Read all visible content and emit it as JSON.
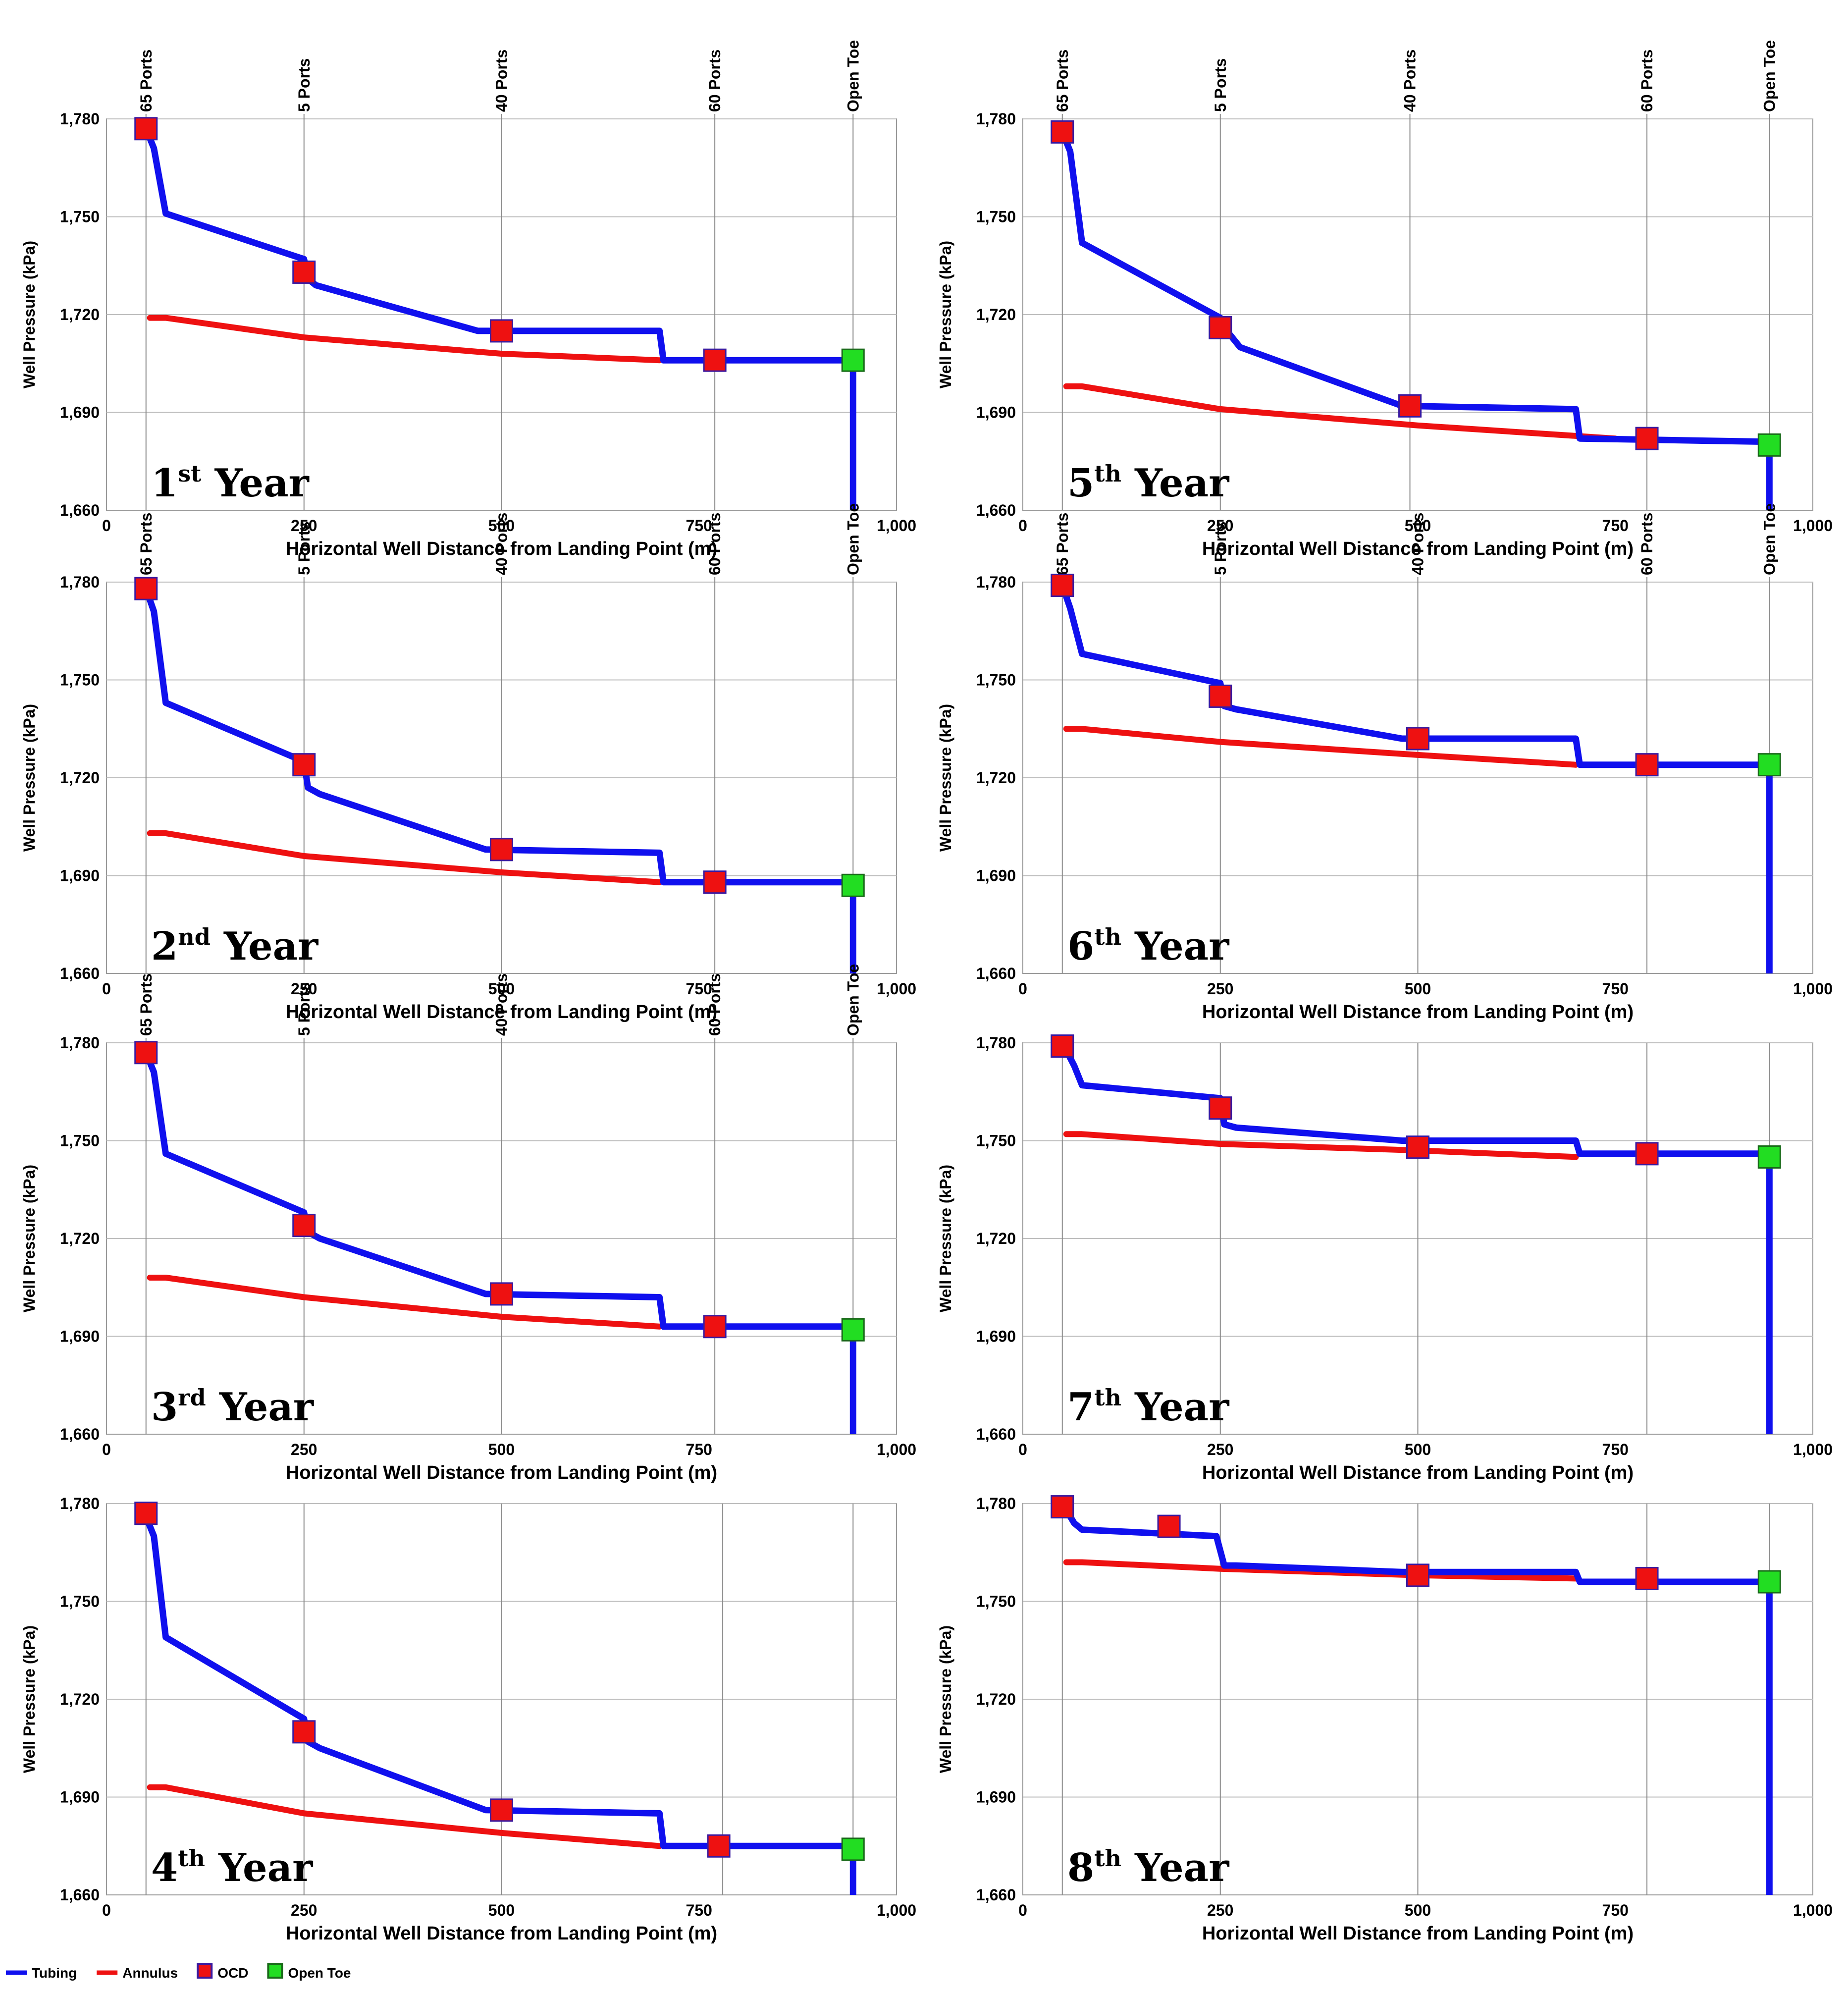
{
  "legend": {
    "items": [
      {
        "name": "Tubing",
        "kind": "line",
        "color": "#1010ee"
      },
      {
        "name": "Annulus",
        "kind": "line",
        "color": "#ee1111"
      },
      {
        "name": "OCD",
        "kind": "marker",
        "color": "#ee1111",
        "edge": "#3a1aa0"
      },
      {
        "name": "Open Toe",
        "kind": "marker",
        "color": "#22dd22",
        "edge": "#1a6a1a"
      }
    ]
  },
  "colors": {
    "tubing": "#1010ee",
    "annulus": "#ee1111",
    "ocd": "#ee1111",
    "open_toe": "#22dd22",
    "grid": "#bdbdbd",
    "marker_line": "#8a8a8a"
  },
  "chart_data": [
    {
      "type": "line",
      "ord": "1",
      "sup": "st",
      "suffix": " Year",
      "xlabel": "Horizontal Well Distance from Landing Point (m)",
      "ylabel": "Well Pressure (kPa)",
      "xlim": [
        0,
        1000
      ],
      "ylim": [
        1660,
        1780
      ],
      "xticks": [
        0,
        250,
        500,
        750,
        1000
      ],
      "xtick_labels": [
        "0",
        "250",
        "500",
        "750",
        "1,000"
      ],
      "yticks": [
        1660,
        1690,
        1720,
        1750,
        1780
      ],
      "ytick_labels": [
        "1,660",
        "1,690",
        "1,720",
        "1,750",
        "1,780"
      ],
      "markers": [
        {
          "label": "65 Ports",
          "x": 50
        },
        {
          "label": "5 Ports",
          "x": 250
        },
        {
          "label": "40 Ports",
          "x": 500
        },
        {
          "label": "60 Ports",
          "x": 770
        },
        {
          "label": "Open Toe",
          "x": 945
        }
      ],
      "tubing": [
        [
          50,
          1777
        ],
        [
          60,
          1771
        ],
        [
          75,
          1751
        ],
        [
          250,
          1737
        ],
        [
          255,
          1731
        ],
        [
          265,
          1729
        ],
        [
          470,
          1715
        ],
        [
          700,
          1715
        ],
        [
          705,
          1706
        ],
        [
          945,
          1706
        ],
        [
          945,
          1660
        ]
      ],
      "annulus": [
        [
          55,
          1719
        ],
        [
          75,
          1719
        ],
        [
          250,
          1713
        ],
        [
          500,
          1708
        ],
        [
          700,
          1706
        ]
      ],
      "ocd": [
        [
          50,
          1777
        ],
        [
          250,
          1733
        ],
        [
          500,
          1715
        ],
        [
          770,
          1706
        ]
      ],
      "open_toe": [
        [
          945,
          1706
        ]
      ]
    },
    {
      "type": "line",
      "ord": "5",
      "sup": "th",
      "suffix": " Year",
      "xlabel": "Horizontal Well Distance from Landing Point (m)",
      "ylabel": "Well Pressure (kPa)",
      "xlim": [
        0,
        1000
      ],
      "ylim": [
        1660,
        1780
      ],
      "xticks": [
        0,
        250,
        500,
        750,
        1000
      ],
      "xtick_labels": [
        "0",
        "250",
        "500",
        "750",
        "1,000"
      ],
      "yticks": [
        1660,
        1690,
        1720,
        1750,
        1780
      ],
      "ytick_labels": [
        "1,660",
        "1,690",
        "1,720",
        "1,750",
        "1,780"
      ],
      "markers": [
        {
          "label": "65 Ports",
          "x": 50
        },
        {
          "label": "5 Ports",
          "x": 250
        },
        {
          "label": "40 Ports",
          "x": 490
        },
        {
          "label": "60 Ports",
          "x": 790
        },
        {
          "label": "Open Toe",
          "x": 945
        }
      ],
      "tubing": [
        [
          50,
          1776
        ],
        [
          60,
          1770
        ],
        [
          75,
          1742
        ],
        [
          250,
          1719
        ],
        [
          255,
          1716
        ],
        [
          275,
          1710
        ],
        [
          480,
          1692
        ],
        [
          700,
          1691
        ],
        [
          705,
          1682
        ],
        [
          945,
          1681
        ],
        [
          945,
          1660
        ]
      ],
      "annulus": [
        [
          55,
          1698
        ],
        [
          75,
          1698
        ],
        [
          250,
          1691
        ],
        [
          500,
          1686
        ],
        [
          750,
          1682
        ]
      ],
      "ocd": [
        [
          50,
          1776
        ],
        [
          250,
          1716
        ],
        [
          490,
          1692
        ],
        [
          790,
          1682
        ]
      ],
      "open_toe": [
        [
          945,
          1680
        ]
      ]
    },
    {
      "type": "line",
      "ord": "2",
      "sup": "nd",
      "suffix": " Year",
      "xlabel": "Horizontal Well Distance from Landing Point (m)",
      "ylabel": "Well Pressure (kPa)",
      "xlim": [
        0,
        1000
      ],
      "ylim": [
        1660,
        1780
      ],
      "xticks": [
        0,
        250,
        500,
        750,
        1000
      ],
      "xtick_labels": [
        "0",
        "250",
        "500",
        "750",
        "1,000"
      ],
      "yticks": [
        1660,
        1690,
        1720,
        1750,
        1780
      ],
      "ytick_labels": [
        "1,660",
        "1,690",
        "1,720",
        "1,750",
        "1,780"
      ],
      "markers": [
        {
          "label": "65 Ports",
          "x": 50
        },
        {
          "label": "5 Ports",
          "x": 250
        },
        {
          "label": "40 Ports",
          "x": 500
        },
        {
          "label": "60 Ports",
          "x": 770
        },
        {
          "label": "Open Toe",
          "x": 945
        }
      ],
      "tubing": [
        [
          50,
          1778
        ],
        [
          60,
          1771
        ],
        [
          75,
          1743
        ],
        [
          250,
          1725
        ],
        [
          255,
          1717
        ],
        [
          270,
          1715
        ],
        [
          480,
          1698
        ],
        [
          700,
          1697
        ],
        [
          705,
          1688
        ],
        [
          945,
          1688
        ],
        [
          945,
          1660
        ]
      ],
      "annulus": [
        [
          55,
          1703
        ],
        [
          75,
          1703
        ],
        [
          250,
          1696
        ],
        [
          500,
          1691
        ],
        [
          700,
          1688
        ]
      ],
      "ocd": [
        [
          50,
          1778
        ],
        [
          250,
          1724
        ],
        [
          500,
          1698
        ],
        [
          770,
          1688
        ]
      ],
      "open_toe": [
        [
          945,
          1687
        ]
      ]
    },
    {
      "type": "line",
      "ord": "6",
      "sup": "th",
      "suffix": " Year",
      "xlabel": "Horizontal Well Distance from Landing Point (m)",
      "ylabel": "Well Pressure (kPa)",
      "xlim": [
        0,
        1000
      ],
      "ylim": [
        1660,
        1780
      ],
      "xticks": [
        0,
        250,
        500,
        750,
        1000
      ],
      "xtick_labels": [
        "0",
        "250",
        "500",
        "750",
        "1,000"
      ],
      "yticks": [
        1660,
        1690,
        1720,
        1750,
        1780
      ],
      "ytick_labels": [
        "1,660",
        "1,690",
        "1,720",
        "1,750",
        "1,780"
      ],
      "markers": [
        {
          "label": "65 Ports",
          "x": 50
        },
        {
          "label": "5 Ports",
          "x": 250
        },
        {
          "label": "40 Ports",
          "x": 500
        },
        {
          "label": "60 Ports",
          "x": 790
        },
        {
          "label": "Open Toe",
          "x": 945
        }
      ],
      "tubing": [
        [
          50,
          1779
        ],
        [
          60,
          1772
        ],
        [
          75,
          1758
        ],
        [
          250,
          1749
        ],
        [
          255,
          1742
        ],
        [
          270,
          1741
        ],
        [
          480,
          1732
        ],
        [
          700,
          1732
        ],
        [
          705,
          1724
        ],
        [
          945,
          1724
        ],
        [
          945,
          1660
        ]
      ],
      "annulus": [
        [
          55,
          1735
        ],
        [
          75,
          1735
        ],
        [
          250,
          1731
        ],
        [
          500,
          1727
        ],
        [
          700,
          1724
        ]
      ],
      "ocd": [
        [
          50,
          1779
        ],
        [
          250,
          1745
        ],
        [
          500,
          1732
        ],
        [
          790,
          1724
        ]
      ],
      "open_toe": [
        [
          945,
          1724
        ]
      ]
    },
    {
      "type": "line",
      "ord": "3",
      "sup": "rd",
      "suffix": " Year",
      "xlabel": "Horizontal Well Distance from Landing Point (m)",
      "ylabel": "Well Pressure (kPa)",
      "xlim": [
        0,
        1000
      ],
      "ylim": [
        1660,
        1780
      ],
      "xticks": [
        0,
        250,
        500,
        750,
        1000
      ],
      "xtick_labels": [
        "0",
        "250",
        "500",
        "750",
        "1,000"
      ],
      "yticks": [
        1660,
        1690,
        1720,
        1750,
        1780
      ],
      "ytick_labels": [
        "1,660",
        "1,690",
        "1,720",
        "1,750",
        "1,780"
      ],
      "markers": [
        {
          "label": "65 Ports",
          "x": 50
        },
        {
          "label": "5 Ports",
          "x": 250
        },
        {
          "label": "40 Ports",
          "x": 500
        },
        {
          "label": "60 Ports",
          "x": 770
        },
        {
          "label": "Open Toe",
          "x": 945
        }
      ],
      "tubing": [
        [
          50,
          1777
        ],
        [
          60,
          1771
        ],
        [
          75,
          1746
        ],
        [
          250,
          1728
        ],
        [
          255,
          1722
        ],
        [
          270,
          1720
        ],
        [
          480,
          1703
        ],
        [
          700,
          1702
        ],
        [
          705,
          1693
        ],
        [
          945,
          1693
        ],
        [
          945,
          1660
        ]
      ],
      "annulus": [
        [
          55,
          1708
        ],
        [
          75,
          1708
        ],
        [
          250,
          1702
        ],
        [
          500,
          1696
        ],
        [
          700,
          1693
        ]
      ],
      "ocd": [
        [
          50,
          1777
        ],
        [
          250,
          1724
        ],
        [
          500,
          1703
        ],
        [
          770,
          1693
        ]
      ],
      "open_toe": [
        [
          945,
          1692
        ]
      ]
    },
    {
      "type": "line",
      "ord": "7",
      "sup": "th",
      "suffix": " Year",
      "xlabel": "Horizontal Well Distance from Landing Point (m)",
      "ylabel": "Well Pressure (kPa)",
      "xlim": [
        0,
        1000
      ],
      "ylim": [
        1660,
        1780
      ],
      "xticks": [
        0,
        250,
        500,
        750,
        1000
      ],
      "xtick_labels": [
        "0",
        "250",
        "500",
        "750",
        "1,000"
      ],
      "yticks": [
        1660,
        1690,
        1720,
        1750,
        1780
      ],
      "ytick_labels": [
        "1,660",
        "1,690",
        "1,720",
        "1,750",
        "1,780"
      ],
      "markers": [
        {
          "label": "",
          "x": 50
        },
        {
          "label": "",
          "x": 250
        },
        {
          "label": "",
          "x": 500
        },
        {
          "label": "",
          "x": 790
        },
        {
          "label": "",
          "x": 945
        }
      ],
      "tubing": [
        [
          50,
          1780
        ],
        [
          65,
          1773
        ],
        [
          75,
          1767
        ],
        [
          250,
          1763
        ],
        [
          255,
          1755
        ],
        [
          270,
          1754
        ],
        [
          480,
          1750
        ],
        [
          700,
          1750
        ],
        [
          705,
          1746
        ],
        [
          945,
          1746
        ],
        [
          945,
          1660
        ]
      ],
      "annulus": [
        [
          55,
          1752
        ],
        [
          75,
          1752
        ],
        [
          250,
          1749
        ],
        [
          500,
          1747
        ],
        [
          700,
          1745
        ]
      ],
      "ocd": [
        [
          50,
          1779
        ],
        [
          250,
          1760
        ],
        [
          500,
          1748
        ],
        [
          790,
          1746
        ]
      ],
      "open_toe": [
        [
          945,
          1745
        ]
      ]
    },
    {
      "type": "line",
      "ord": "4",
      "sup": "th",
      "suffix": " Year",
      "xlabel": "Horizontal Well Distance from Landing Point (m)",
      "ylabel": "Well Pressure (kPa)",
      "xlim": [
        0,
        1000
      ],
      "ylim": [
        1660,
        1780
      ],
      "xticks": [
        0,
        250,
        500,
        750,
        1000
      ],
      "xtick_labels": [
        "0",
        "250",
        "500",
        "750",
        "1,000"
      ],
      "yticks": [
        1660,
        1690,
        1720,
        1750,
        1780
      ],
      "ytick_labels": [
        "1,660",
        "1,690",
        "1,720",
        "1,750",
        "1,780"
      ],
      "markers": [
        {
          "label": "",
          "x": 50
        },
        {
          "label": "",
          "x": 250
        },
        {
          "label": "",
          "x": 500
        },
        {
          "label": "",
          "x": 780
        },
        {
          "label": "",
          "x": 945
        }
      ],
      "tubing": [
        [
          50,
          1776
        ],
        [
          60,
          1770
        ],
        [
          75,
          1739
        ],
        [
          250,
          1714
        ],
        [
          255,
          1707
        ],
        [
          270,
          1705
        ],
        [
          480,
          1686
        ],
        [
          700,
          1685
        ],
        [
          705,
          1675
        ],
        [
          945,
          1675
        ],
        [
          945,
          1660
        ]
      ],
      "annulus": [
        [
          55,
          1693
        ],
        [
          75,
          1693
        ],
        [
          250,
          1685
        ],
        [
          500,
          1679
        ],
        [
          700,
          1675
        ]
      ],
      "ocd": [
        [
          50,
          1777
        ],
        [
          250,
          1710
        ],
        [
          500,
          1686
        ],
        [
          775,
          1675
        ]
      ],
      "open_toe": [
        [
          945,
          1674
        ]
      ]
    },
    {
      "type": "line",
      "ord": "8",
      "sup": "th",
      "suffix": " Year",
      "xlabel": "Horizontal Well Distance from Landing Point (m)",
      "ylabel": "Well Pressure (kPa)",
      "xlim": [
        0,
        1000
      ],
      "ylim": [
        1660,
        1780
      ],
      "xticks": [
        0,
        250,
        500,
        750,
        1000
      ],
      "xtick_labels": [
        "0",
        "250",
        "500",
        "750",
        "1,000"
      ],
      "yticks": [
        1660,
        1690,
        1720,
        1750,
        1780
      ],
      "ytick_labels": [
        "1,660",
        "1,690",
        "1,720",
        "1,750",
        "1,780"
      ],
      "markers": [
        {
          "label": "",
          "x": 50
        },
        {
          "label": "",
          "x": 250
        },
        {
          "label": "",
          "x": 500
        },
        {
          "label": "",
          "x": 790
        },
        {
          "label": "",
          "x": 945
        }
      ],
      "tubing": [
        [
          50,
          1780
        ],
        [
          65,
          1774
        ],
        [
          75,
          1772
        ],
        [
          245,
          1770
        ],
        [
          255,
          1761
        ],
        [
          270,
          1761
        ],
        [
          480,
          1759
        ],
        [
          700,
          1759
        ],
        [
          705,
          1756
        ],
        [
          945,
          1756
        ],
        [
          945,
          1660
        ]
      ],
      "annulus": [
        [
          55,
          1762
        ],
        [
          75,
          1762
        ],
        [
          250,
          1760
        ],
        [
          500,
          1758
        ],
        [
          700,
          1757
        ]
      ],
      "ocd": [
        [
          50,
          1779
        ],
        [
          185,
          1773
        ],
        [
          500,
          1758
        ],
        [
          790,
          1757
        ]
      ],
      "open_toe": [
        [
          945,
          1756
        ]
      ]
    }
  ]
}
